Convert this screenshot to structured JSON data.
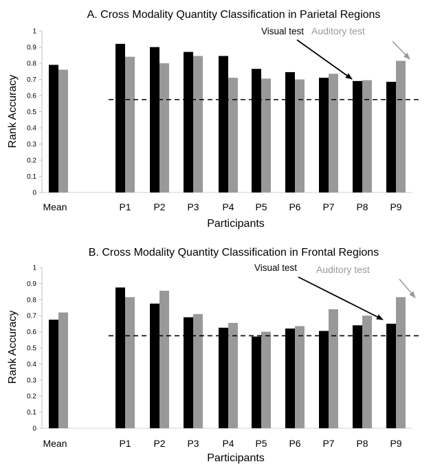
{
  "colors": {
    "visual": "#000000",
    "auditory": "#999999",
    "chance_line": "#000000"
  },
  "chart_data": [
    {
      "type": "bar",
      "title": "A. Cross Modality Quantity Classification in Parietal Regions",
      "xlabel": "Participants",
      "ylabel": "Rank Accuracy",
      "ylim": [
        0,
        1
      ],
      "yticks": [
        "0",
        "0.1",
        "0.2",
        "0.3",
        "0.4",
        "0.5",
        "0.6",
        "0.7",
        "0.8",
        "0.9",
        "1"
      ],
      "categories": [
        "Mean",
        "P1",
        "P2",
        "P3",
        "P4",
        "P5",
        "P6",
        "P7",
        "P8",
        "P9"
      ],
      "series": [
        {
          "name": "Visual test",
          "values": [
            0.79,
            0.92,
            0.9,
            0.87,
            0.845,
            0.765,
            0.745,
            0.71,
            0.69,
            0.685
          ]
        },
        {
          "name": "Auditory test",
          "values": [
            0.76,
            0.84,
            0.8,
            0.845,
            0.71,
            0.705,
            0.7,
            0.735,
            0.695,
            0.815
          ]
        }
      ],
      "chance_level": 0.575,
      "grid": false,
      "legend": "annotations with arrows, top-right"
    },
    {
      "type": "bar",
      "title": "B. Cross Modality Quantity Classification in Frontal Regions",
      "xlabel": "Participants",
      "ylabel": "Rank Accuracy",
      "ylim": [
        0,
        1
      ],
      "yticks": [
        "0",
        "0.1",
        "0.2",
        "0.3",
        "0.4",
        "0.5",
        "0.6",
        "0.7",
        "0.8",
        "0.9",
        "1"
      ],
      "categories": [
        "Mean",
        "P1",
        "P2",
        "P3",
        "P4",
        "P5",
        "P6",
        "P7",
        "P8",
        "P9"
      ],
      "series": [
        {
          "name": "Visual test",
          "values": [
            0.675,
            0.875,
            0.775,
            0.69,
            0.625,
            0.57,
            0.62,
            0.605,
            0.64,
            0.65
          ]
        },
        {
          "name": "Auditory test",
          "values": [
            0.72,
            0.815,
            0.855,
            0.71,
            0.655,
            0.6,
            0.635,
            0.74,
            0.7,
            0.815
          ]
        }
      ],
      "chance_level": 0.575,
      "grid": false,
      "legend": "annotations with arrows, top-right"
    }
  ]
}
